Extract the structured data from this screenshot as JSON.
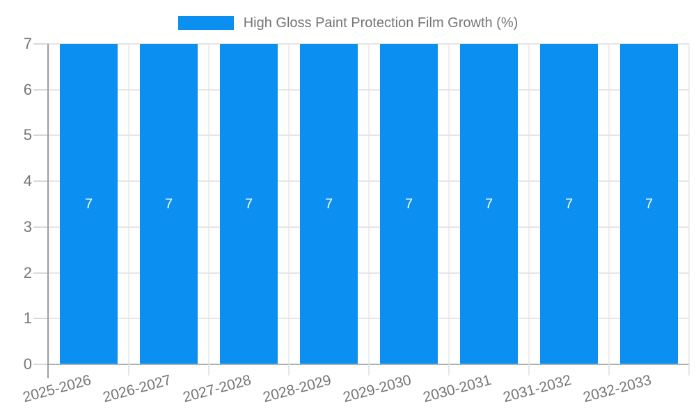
{
  "chart_data": {
    "type": "bar",
    "series_name": "High Gloss Paint Protection Film Growth (%)",
    "categories": [
      "2025-2026",
      "2026-2027",
      "2027-2028",
      "2028-2029",
      "2029-2030",
      "2030-2031",
      "2031-2032",
      "2032-2033"
    ],
    "values": [
      7,
      7,
      7,
      7,
      7,
      7,
      7,
      7
    ],
    "bar_labels": [
      "7",
      "7",
      "7",
      "7",
      "7",
      "7",
      "7",
      "7"
    ],
    "ylabel": "",
    "xlabel": "",
    "ylim": [
      0,
      7
    ],
    "yticks": [
      0,
      1,
      2,
      3,
      4,
      5,
      6,
      7
    ],
    "grid": "on",
    "legend_position": "top-center",
    "bar_label_position": "inside-center",
    "x_label_rotation_deg": -15,
    "colors": {
      "bar": "#0b90f2",
      "text": "#757575",
      "bar_label": "#ffffff",
      "grid_h": "#e6e6e6",
      "grid_v": "#ededed",
      "y_axis_line": "#9e9e9e",
      "x_axis_line": "#b0b0b0",
      "tick": "#d8d8d8",
      "background": "#ffffff"
    }
  }
}
